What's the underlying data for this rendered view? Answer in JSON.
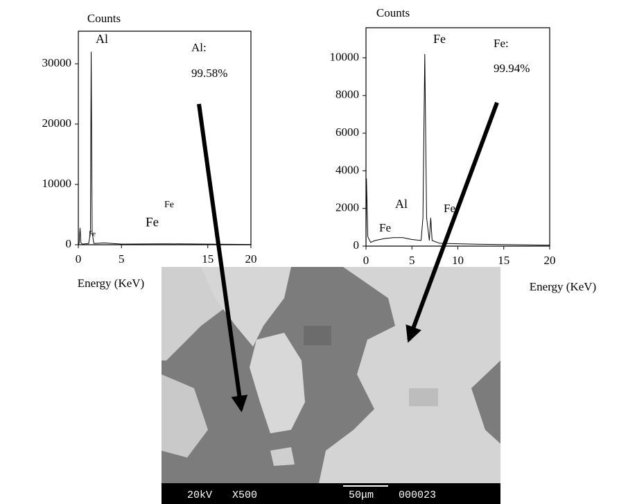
{
  "chart_data": [
    {
      "type": "line",
      "y_label": "Counts",
      "x_label": "Energy (KeV)",
      "x": [
        0,
        0.1,
        0.2,
        0.3,
        0.5,
        1.2,
        1.4,
        1.49,
        1.6,
        1.8,
        3,
        5,
        10,
        15,
        20
      ],
      "series": [
        {
          "name": "Spectrum",
          "color": "#000000",
          "values": [
            0,
            300,
            2800,
            300,
            100,
            200,
            2000,
            32000,
            2000,
            200,
            300,
            100,
            150,
            100,
            50
          ]
        }
      ],
      "xlim": [
        0,
        20
      ],
      "xticks": [
        0,
        5,
        15,
        20
      ],
      "ylim": [
        0,
        35400
      ],
      "yticks": [
        0,
        10000,
        20000,
        30000
      ],
      "annotations": [
        "Al",
        "Fe",
        "Fe",
        "Fe",
        "Al:",
        "99.58%"
      ]
    },
    {
      "type": "line",
      "y_label": "Counts",
      "x_label": "Energy (KeV)",
      "x": [
        0,
        0.05,
        0.2,
        0.5,
        1,
        2,
        3,
        4,
        5,
        6,
        6.2,
        6.4,
        6.6,
        6.9,
        7.05,
        7.2,
        8,
        12,
        20
      ],
      "series": [
        {
          "name": "Spectrum",
          "color": "#000000",
          "values": [
            0,
            3600,
            500,
            200,
            300,
            400,
            450,
            450,
            350,
            300,
            1500,
            10200,
            1500,
            300,
            1500,
            300,
            150,
            100,
            50
          ]
        }
      ],
      "xlim": [
        0,
        20
      ],
      "xticks": [
        0,
        5,
        10,
        15,
        20
      ],
      "ylim": [
        0,
        11600
      ],
      "yticks": [
        0,
        2000,
        4000,
        6000,
        8000,
        10000
      ],
      "annotations": [
        "Fe",
        "Al",
        "Fe",
        "Fe",
        "Fe:",
        "99.94%"
      ]
    }
  ],
  "sem_image": {
    "labels": [
      "20kV",
      "X500",
      "50μm",
      "000023"
    ]
  }
}
